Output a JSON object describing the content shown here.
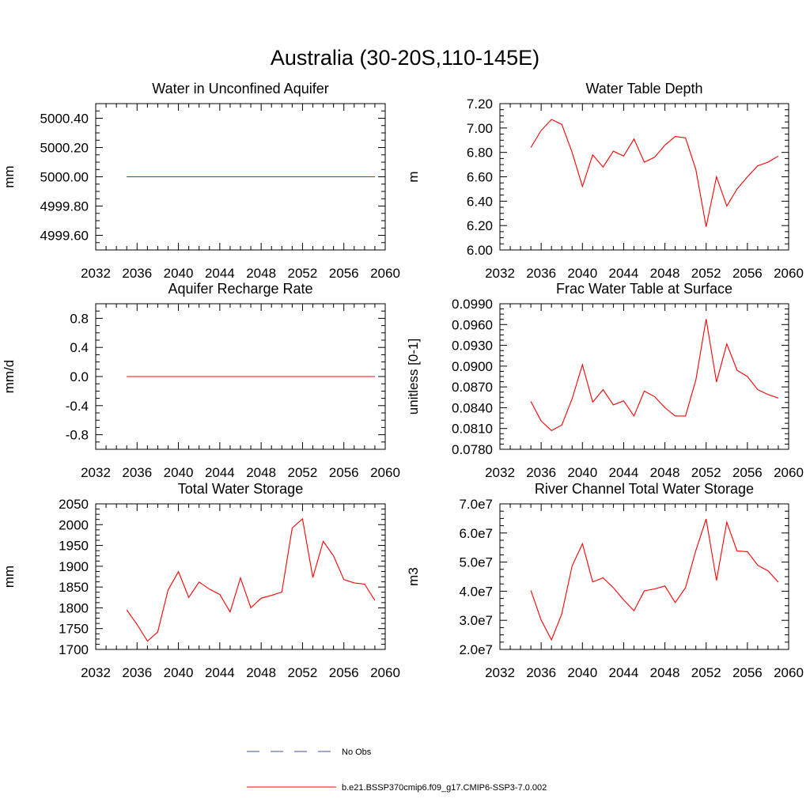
{
  "figure": {
    "title": "Australia (30-20S,110-145E)"
  },
  "chart_data": [
    {
      "type": "line",
      "title": "Water in Unconfined Aquifer",
      "xlabel": "",
      "ylabel": "mm",
      "xlim": [
        2032,
        2060
      ],
      "ylim": [
        4999.5,
        5000.5
      ],
      "xticks": [
        2032,
        2036,
        2040,
        2044,
        2048,
        2052,
        2056,
        2060
      ],
      "xtick_labels": [
        "2032",
        "2036",
        "2040",
        "2044",
        "2048",
        "2052",
        "2056",
        "2060"
      ],
      "yticks": [
        4999.6,
        4999.8,
        5000.0,
        5000.2,
        5000.4
      ],
      "ytick_labels": [
        "4999.60",
        "4999.80",
        "5000.00",
        "5000.20",
        "5000.40"
      ],
      "series": [
        {
          "color": "#ff0000",
          "x": [
            2035,
            2036,
            2037,
            2038,
            2039,
            2040,
            2041,
            2042,
            2043,
            2044,
            2045,
            2046,
            2047,
            2048,
            2049,
            2050,
            2051,
            2052,
            2053,
            2054,
            2055,
            2056,
            2057,
            2058,
            2059
          ],
          "y": [
            5000,
            5000,
            5000,
            5000,
            5000,
            5000,
            5000,
            5000,
            5000,
            5000,
            5000,
            5000,
            5000,
            5000,
            5000,
            5000,
            5000,
            5000,
            5000,
            5000,
            5000,
            5000,
            5000,
            5000,
            5000
          ]
        }
      ]
    },
    {
      "type": "line",
      "title": "Water Table Depth",
      "xlabel": "",
      "ylabel": "m",
      "xlim": [
        2032,
        2060
      ],
      "ylim": [
        6.0,
        7.2
      ],
      "xticks": [
        2032,
        2036,
        2040,
        2044,
        2048,
        2052,
        2056,
        2060
      ],
      "xtick_labels": [
        "2032",
        "2036",
        "2040",
        "2044",
        "2048",
        "2052",
        "2056",
        "2060"
      ],
      "yticks": [
        6.0,
        6.2,
        6.4,
        6.6,
        6.8,
        7.0,
        7.2
      ],
      "ytick_labels": [
        "6.00",
        "6.20",
        "6.40",
        "6.60",
        "6.80",
        "7.00",
        "7.20"
      ],
      "series": [
        {
          "color": "#ff0000",
          "x": [
            2035,
            2036,
            2037,
            2038,
            2039,
            2040,
            2041,
            2042,
            2043,
            2044,
            2045,
            2046,
            2047,
            2048,
            2049,
            2050,
            2051,
            2052,
            2053,
            2054,
            2055,
            2056,
            2057,
            2058,
            2059
          ],
          "y": [
            6.84,
            6.98,
            7.07,
            7.03,
            6.8,
            6.52,
            6.78,
            6.68,
            6.81,
            6.77,
            6.91,
            6.72,
            6.76,
            6.86,
            6.93,
            6.92,
            6.66,
            6.19,
            6.6,
            6.36,
            6.5,
            6.6,
            6.69,
            6.72,
            6.77
          ]
        }
      ]
    },
    {
      "type": "line",
      "title": "Aquifer Recharge Rate",
      "xlabel": "",
      "ylabel": "mm/d",
      "xlim": [
        2032,
        2060
      ],
      "ylim": [
        -1.0,
        1.0
      ],
      "xticks": [
        2032,
        2036,
        2040,
        2044,
        2048,
        2052,
        2056,
        2060
      ],
      "xtick_labels": [
        "2032",
        "2036",
        "2040",
        "2044",
        "2048",
        "2052",
        "2056",
        "2060"
      ],
      "yticks": [
        -0.8,
        -0.4,
        0.0,
        0.4,
        0.8
      ],
      "ytick_labels": [
        "-0.8",
        "-0.4",
        "0.0",
        "0.4",
        "0.8"
      ],
      "series": [
        {
          "color": "#ff0000",
          "x": [
            2035,
            2036,
            2037,
            2038,
            2039,
            2040,
            2041,
            2042,
            2043,
            2044,
            2045,
            2046,
            2047,
            2048,
            2049,
            2050,
            2051,
            2052,
            2053,
            2054,
            2055,
            2056,
            2057,
            2058,
            2059
          ],
          "y": [
            0,
            0,
            0,
            0,
            0,
            0,
            0,
            0,
            0,
            0,
            0,
            0,
            0,
            0,
            0,
            0,
            0,
            0,
            0,
            0,
            0,
            0,
            0,
            0,
            0
          ]
        }
      ]
    },
    {
      "type": "line",
      "title": "Frac Water Table at Surface",
      "xlabel": "",
      "ylabel": "unitless [0-1]",
      "xlim": [
        2032,
        2060
      ],
      "ylim": [
        0.078,
        0.099
      ],
      "xticks": [
        2032,
        2036,
        2040,
        2044,
        2048,
        2052,
        2056,
        2060
      ],
      "xtick_labels": [
        "2032",
        "2036",
        "2040",
        "2044",
        "2048",
        "2052",
        "2056",
        "2060"
      ],
      "yticks": [
        0.078,
        0.081,
        0.084,
        0.087,
        0.09,
        0.093,
        0.096,
        0.099
      ],
      "ytick_labels": [
        "0.0780",
        "0.0810",
        "0.0840",
        "0.0870",
        "0.0900",
        "0.0930",
        "0.0960",
        "0.0990"
      ],
      "series": [
        {
          "color": "#ff0000",
          "x": [
            2035,
            2036,
            2037,
            2038,
            2039,
            2040,
            2041,
            2042,
            2043,
            2044,
            2045,
            2046,
            2047,
            2048,
            2049,
            2050,
            2051,
            2052,
            2053,
            2054,
            2055,
            2056,
            2057,
            2058,
            2059
          ],
          "y": [
            0.0849,
            0.0821,
            0.0807,
            0.0815,
            0.0853,
            0.0902,
            0.0848,
            0.0866,
            0.0844,
            0.085,
            0.0828,
            0.0864,
            0.0856,
            0.084,
            0.0828,
            0.0828,
            0.088,
            0.0968,
            0.0877,
            0.0932,
            0.0894,
            0.0885,
            0.0866,
            0.0859,
            0.0854
          ]
        }
      ]
    },
    {
      "type": "line",
      "title": "Total Water Storage",
      "xlabel": "",
      "ylabel": "mm",
      "xlim": [
        2032,
        2060
      ],
      "ylim": [
        1700,
        2050
      ],
      "xticks": [
        2032,
        2036,
        2040,
        2044,
        2048,
        2052,
        2056,
        2060
      ],
      "xtick_labels": [
        "2032",
        "2036",
        "2040",
        "2044",
        "2048",
        "2052",
        "2056",
        "2060"
      ],
      "yticks": [
        1700,
        1750,
        1800,
        1850,
        1900,
        1950,
        2000,
        2050
      ],
      "ytick_labels": [
        "1700",
        "1750",
        "1800",
        "1850",
        "1900",
        "1950",
        "2000",
        "2050"
      ],
      "series": [
        {
          "color": "#ff0000",
          "x": [
            2035,
            2036,
            2037,
            2038,
            2039,
            2040,
            2041,
            2042,
            2043,
            2044,
            2045,
            2046,
            2047,
            2048,
            2049,
            2050,
            2051,
            2052,
            2053,
            2054,
            2055,
            2056,
            2057,
            2058,
            2059
          ],
          "y": [
            1795,
            1760,
            1720,
            1742,
            1843,
            1887,
            1825,
            1862,
            1845,
            1832,
            1790,
            1872,
            1800,
            1823,
            1830,
            1838,
            1992,
            2014,
            1873,
            1960,
            1925,
            1868,
            1860,
            1857,
            1818
          ]
        }
      ]
    },
    {
      "type": "line",
      "title": "River Channel Total Water Storage",
      "xlabel": "",
      "ylabel": "m3",
      "xlim": [
        2032,
        2060
      ],
      "ylim": [
        20000000,
        70000000
      ],
      "xticks": [
        2032,
        2036,
        2040,
        2044,
        2048,
        2052,
        2056,
        2060
      ],
      "xtick_labels": [
        "2032",
        "2036",
        "2040",
        "2044",
        "2048",
        "2052",
        "2056",
        "2060"
      ],
      "yticks": [
        20000000,
        30000000,
        40000000,
        50000000,
        60000000,
        70000000
      ],
      "ytick_labels": [
        "2.0e7",
        "3.0e7",
        "4.0e7",
        "5.0e7",
        "6.0e7",
        "7.0e7"
      ],
      "series": [
        {
          "color": "#ff0000",
          "x": [
            2035,
            2036,
            2037,
            2038,
            2039,
            2040,
            2041,
            2042,
            2043,
            2044,
            2045,
            2046,
            2047,
            2048,
            2049,
            2050,
            2051,
            2052,
            2053,
            2054,
            2055,
            2056,
            2057,
            2058,
            2059
          ],
          "y": [
            40300000,
            30100000,
            23300000,
            32200000,
            48700000,
            56300000,
            43200000,
            44600000,
            41200000,
            37000000,
            33300000,
            40100000,
            40800000,
            41800000,
            36100000,
            41200000,
            54000000,
            64800000,
            43700000,
            63700000,
            53800000,
            53600000,
            48900000,
            47000000,
            43100000
          ]
        }
      ]
    }
  ],
  "legend": {
    "placement": "bottom-center",
    "entries": [
      {
        "label": "No Obs",
        "color": "#3b4fa0",
        "style": "dashed"
      },
      {
        "label": "b.e21.BSSP370cmip6.f09_g17.CMIP6-SSP3-7.0.002",
        "color": "#ff0000",
        "style": "solid"
      }
    ]
  }
}
